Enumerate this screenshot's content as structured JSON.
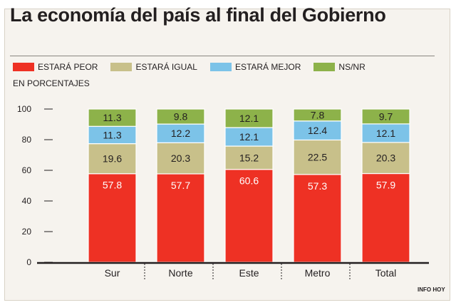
{
  "chart_data": {
    "type": "bar",
    "stacked": true,
    "title": "La economía del país al final del Gobierno",
    "unit_label": "EN PORCENTAJES",
    "credit": "INFO HOY",
    "categories": [
      "Sur",
      "Norte",
      "Este",
      "Metro",
      "Total"
    ],
    "ylim": [
      0,
      100
    ],
    "yticks": [
      "0",
      "20",
      "40",
      "60",
      "80",
      "100"
    ],
    "ytick_values": [
      0,
      20,
      40,
      60,
      80,
      100
    ],
    "legend_position": "top",
    "grid": false,
    "series": [
      {
        "name": "ESTARÁ PEOR",
        "color": "#ee3124",
        "values": [
          57.8,
          57.7,
          60.6,
          57.3,
          57.9
        ],
        "labels": [
          "57.8",
          "57.7",
          "60.6",
          "57.3",
          "57.9"
        ]
      },
      {
        "name": "ESTARÁ IGUAL",
        "color": "#c8c08a",
        "values": [
          19.6,
          20.3,
          15.2,
          22.5,
          20.3
        ],
        "labels": [
          "19.6",
          "20.3",
          "15.2",
          "22.5",
          "20.3"
        ]
      },
      {
        "name": "ESTARÁ MEJOR",
        "color": "#7cc3e8",
        "values": [
          11.3,
          12.2,
          12.1,
          12.4,
          12.1
        ],
        "labels": [
          "11.3",
          "12.2",
          "12.1",
          "12.4",
          "12.1"
        ]
      },
      {
        "name": "NS/NR",
        "color": "#8db24a",
        "values": [
          11.3,
          9.8,
          12.1,
          7.8,
          9.7
        ],
        "labels": [
          "11.3",
          "9.8",
          "12.1",
          "7.8",
          "9.7"
        ]
      }
    ]
  }
}
